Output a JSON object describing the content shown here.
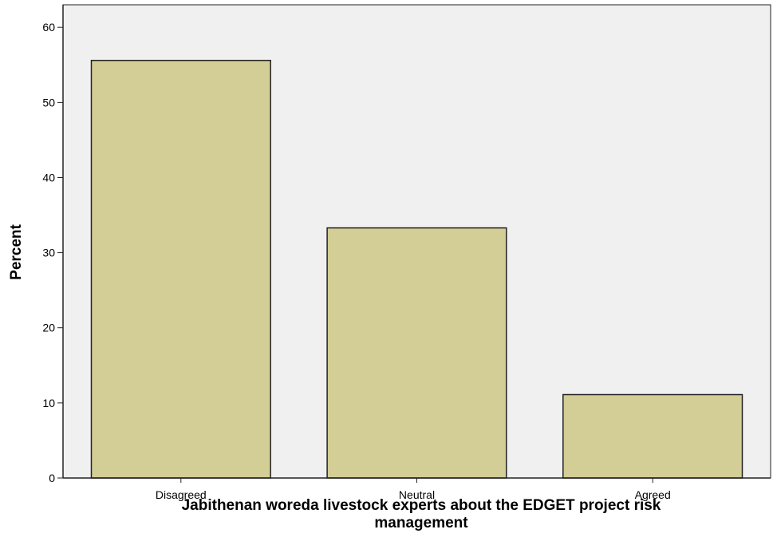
{
  "chart_data": {
    "type": "bar",
    "title": "",
    "categories": [
      "Disagreed",
      "Neutral",
      "Agreed"
    ],
    "values": [
      55.6,
      33.3,
      11.1
    ],
    "ylabel": "Percent",
    "xlabel_lines": [
      "Jabithenan woreda livestock experts about the EDGET project risk",
      "management"
    ],
    "ylim": [
      0,
      63
    ],
    "yticks": [
      0,
      10,
      20,
      30,
      40,
      50,
      60
    ],
    "grid": false,
    "legend": "none"
  },
  "colors": {
    "bar_fill": "#d3cd96",
    "bar_stroke": "#222222",
    "plot_background": "#f0f0f0",
    "axis_color": "#222222"
  }
}
